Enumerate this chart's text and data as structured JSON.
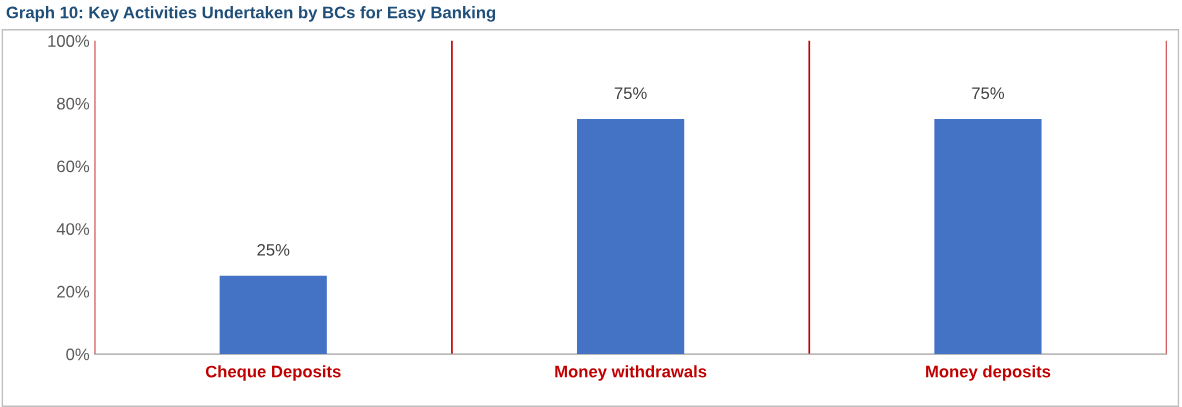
{
  "chart_data": {
    "type": "bar",
    "title": "Graph 10: Key Activities Undertaken by BCs for Easy Banking",
    "categories": [
      "Cheque Deposits",
      "Money withdrawals",
      "Money deposits"
    ],
    "values": [
      25,
      75,
      75
    ],
    "color": "#4472c4",
    "data_labels": true,
    "value_labels": [
      "25%",
      "75%",
      "75%"
    ],
    "ylim": [
      0,
      100
    ],
    "yticks": [
      {
        "value": 0,
        "label": "0%"
      },
      {
        "value": 20,
        "label": "20%"
      },
      {
        "value": 40,
        "label": "40%"
      },
      {
        "value": 60,
        "label": "60%"
      },
      {
        "value": 80,
        "label": "80%"
      },
      {
        "value": 100,
        "label": "100%"
      }
    ],
    "grid": "x",
    "legend": false
  }
}
